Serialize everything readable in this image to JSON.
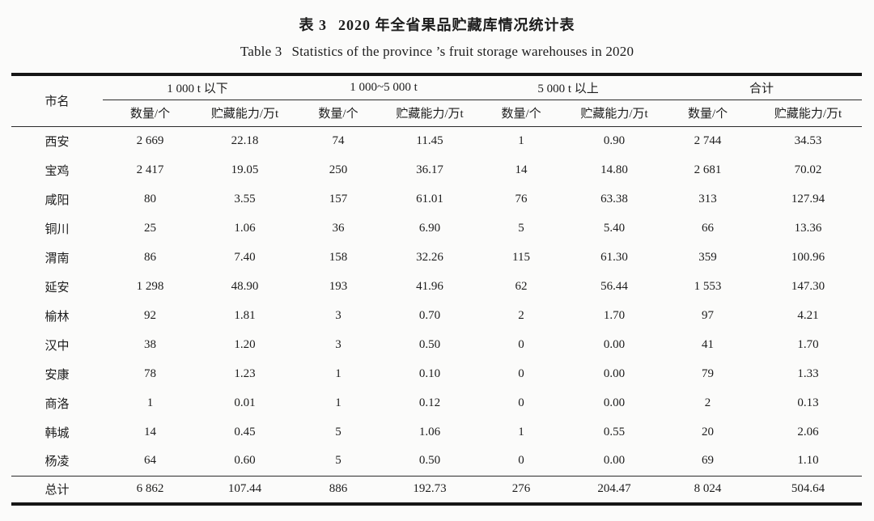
{
  "caption": {
    "zh_label": "表 3",
    "zh_text": "2020 年全省果品贮藏库情况统计表",
    "en_label": "Table 3",
    "en_text": "Statistics of the province ’s fruit storage warehouses in 2020"
  },
  "table": {
    "city_header": "市名",
    "groups": [
      {
        "label": "1 000 t 以下"
      },
      {
        "label": "1 000~5 000 t"
      },
      {
        "label": "5 000 t 以上"
      },
      {
        "label": "合计"
      }
    ],
    "sub_headers": [
      "数量/个",
      "贮藏能力/万t"
    ],
    "rows": [
      {
        "city": "西安",
        "values": [
          "2 669",
          "22.18",
          "74",
          "11.45",
          "1",
          "0.90",
          "2 744",
          "34.53"
        ]
      },
      {
        "city": "宝鸡",
        "values": [
          "2 417",
          "19.05",
          "250",
          "36.17",
          "14",
          "14.80",
          "2 681",
          "70.02"
        ]
      },
      {
        "city": "咸阳",
        "values": [
          "80",
          "3.55",
          "157",
          "61.01",
          "76",
          "63.38",
          "313",
          "127.94"
        ]
      },
      {
        "city": "铜川",
        "values": [
          "25",
          "1.06",
          "36",
          "6.90",
          "5",
          "5.40",
          "66",
          "13.36"
        ]
      },
      {
        "city": "渭南",
        "values": [
          "86",
          "7.40",
          "158",
          "32.26",
          "115",
          "61.30",
          "359",
          "100.96"
        ]
      },
      {
        "city": "延安",
        "values": [
          "1 298",
          "48.90",
          "193",
          "41.96",
          "62",
          "56.44",
          "1 553",
          "147.30"
        ]
      },
      {
        "city": "榆林",
        "values": [
          "92",
          "1.81",
          "3",
          "0.70",
          "2",
          "1.70",
          "97",
          "4.21"
        ]
      },
      {
        "city": "汉中",
        "values": [
          "38",
          "1.20",
          "3",
          "0.50",
          "0",
          "0.00",
          "41",
          "1.70"
        ]
      },
      {
        "city": "安康",
        "values": [
          "78",
          "1.23",
          "1",
          "0.10",
          "0",
          "0.00",
          "79",
          "1.33"
        ]
      },
      {
        "city": "商洛",
        "values": [
          "1",
          "0.01",
          "1",
          "0.12",
          "0",
          "0.00",
          "2",
          "0.13"
        ]
      },
      {
        "city": "韩城",
        "values": [
          "14",
          "0.45",
          "5",
          "1.06",
          "1",
          "0.55",
          "20",
          "2.06"
        ]
      },
      {
        "city": "杨凌",
        "values": [
          "64",
          "0.60",
          "5",
          "0.50",
          "0",
          "0.00",
          "69",
          "1.10"
        ]
      }
    ],
    "total_row": {
      "city": "总计",
      "values": [
        "6 862",
        "107.44",
        "886",
        "192.73",
        "276",
        "204.47",
        "8 024",
        "504.64"
      ]
    }
  }
}
